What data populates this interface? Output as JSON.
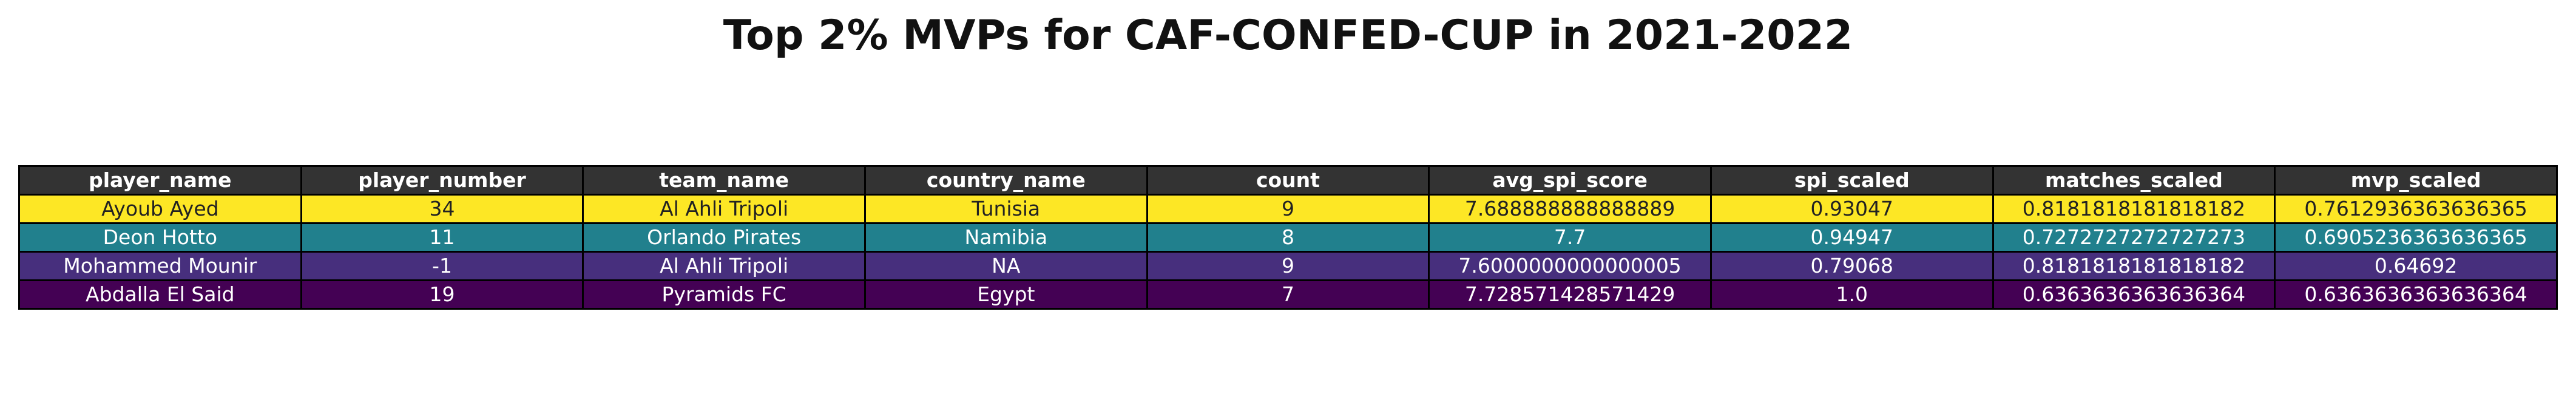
{
  "title": "Top 2% MVPs for CAF-CONFED-CUP in 2021-2022",
  "chart_data": {
    "type": "table",
    "title": "Top 2% MVPs for CAF-CONFED-CUP in 2021-2022",
    "header_color": "#333333",
    "columns": [
      "player_name",
      "player_number",
      "team_name",
      "country_name",
      "count",
      "avg_spi_score",
      "spi_scaled",
      "matches_scaled",
      "mvp_scaled"
    ],
    "rows": [
      {
        "color": "#fde725",
        "text_color": "#222222",
        "cells": [
          "Ayoub Ayed",
          "34",
          "Al Ahli Tripoli",
          "Tunisia",
          "9",
          "7.688888888888889",
          "0.93047",
          "0.8181818181818182",
          "0.7612936363636365"
        ]
      },
      {
        "color": "#21808d",
        "text_color": "#ffffff",
        "cells": [
          "Deon Hotto",
          "11",
          "Orlando Pirates",
          "Namibia",
          "8",
          "7.7",
          "0.94947",
          "0.7272727272727273",
          "0.6905236363636365"
        ]
      },
      {
        "color": "#472f7d",
        "text_color": "#ffffff",
        "cells": [
          "Mohammed Mounir",
          "-1",
          "Al Ahli Tripoli",
          "NA",
          "9",
          "7.6000000000000005",
          "0.79068",
          "0.8181818181818182",
          "0.64692"
        ]
      },
      {
        "color": "#440154",
        "text_color": "#ffffff",
        "cells": [
          "Abdalla El Said",
          "19",
          "Pyramids FC",
          "Egypt",
          "7",
          "7.728571428571429",
          "1.0",
          "0.6363636363636364",
          "0.6363636363636364"
        ]
      }
    ]
  }
}
